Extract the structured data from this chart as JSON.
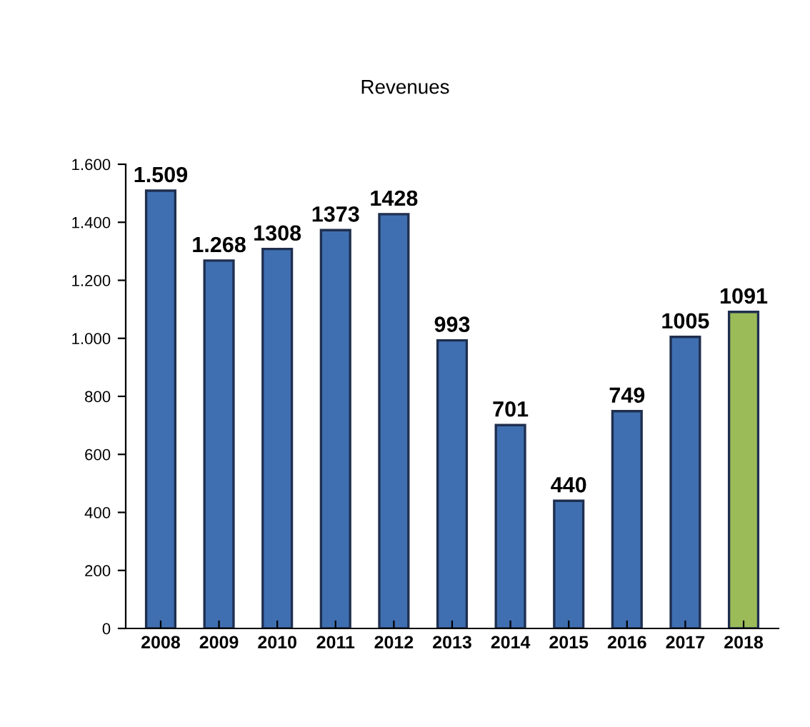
{
  "chart_data": {
    "type": "bar",
    "title": "Revenues",
    "categories": [
      "2008",
      "2009",
      "2010",
      "2011",
      "2012",
      "2013",
      "2014",
      "2015",
      "2016",
      "2017",
      "2018"
    ],
    "values": [
      1509,
      1268,
      1308,
      1373,
      1428,
      993,
      701,
      440,
      749,
      1005,
      1091
    ],
    "colors": [
      "#3f6fb0",
      "#3f6fb0",
      "#3f6fb0",
      "#3f6fb0",
      "#3f6fb0",
      "#3f6fb0",
      "#3f6fb0",
      "#3f6fb0",
      "#3f6fb0",
      "#3f6fb0",
      "#9bbb59"
    ],
    "value_labels": [
      "1.509",
      "1.268",
      "1308",
      "1373",
      "1428",
      "993",
      "701",
      "440",
      "749",
      "1005",
      "1091"
    ],
    "ylim": [
      0,
      1600
    ],
    "yticks": [
      0,
      200,
      400,
      600,
      800,
      {
        "value": 1000,
        "label": "1.000"
      },
      {
        "value": 1200,
        "label": "1.200"
      },
      {
        "value": 1400,
        "label": "1.400"
      },
      {
        "value": 1600,
        "label": "1.600"
      }
    ],
    "grid": false,
    "legend": false
  }
}
